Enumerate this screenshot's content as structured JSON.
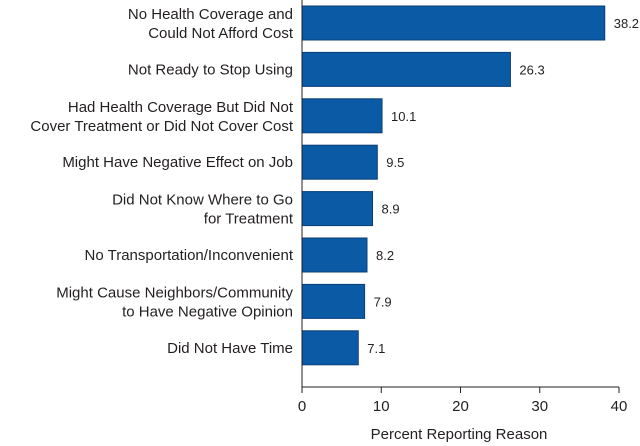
{
  "chart_data": {
    "type": "bar",
    "orientation": "horizontal",
    "categories": [
      [
        "No Health Coverage and",
        "Could Not Afford Cost"
      ],
      [
        "Not Ready to Stop Using"
      ],
      [
        "Had Health Coverage But Did Not",
        "Cover Treatment or Did Not Cover Cost"
      ],
      [
        "Might Have Negative Effect on Job"
      ],
      [
        "Did Not Know Where to Go",
        "for Treatment"
      ],
      [
        "No Transportation/Inconvenient"
      ],
      [
        "Might Cause Neighbors/Community",
        "to Have Negative Opinion"
      ],
      [
        "Did Not Have Time"
      ]
    ],
    "values": [
      38.2,
      26.3,
      10.1,
      9.5,
      8.9,
      8.2,
      7.9,
      7.1
    ],
    "value_labels": [
      "38.2",
      "26.3",
      "10.1",
      "9.5",
      "8.9",
      "8.2",
      "7.9",
      "7.1"
    ],
    "title": "",
    "xlabel": "Percent Reporting Reason",
    "ylabel": "",
    "xlim": [
      0,
      40
    ],
    "xticks": [
      "0",
      "10",
      "20",
      "30",
      "40"
    ],
    "grid": false,
    "bar_color": "#0b5aa6",
    "bar_edge_color": "#0a3f78"
  }
}
